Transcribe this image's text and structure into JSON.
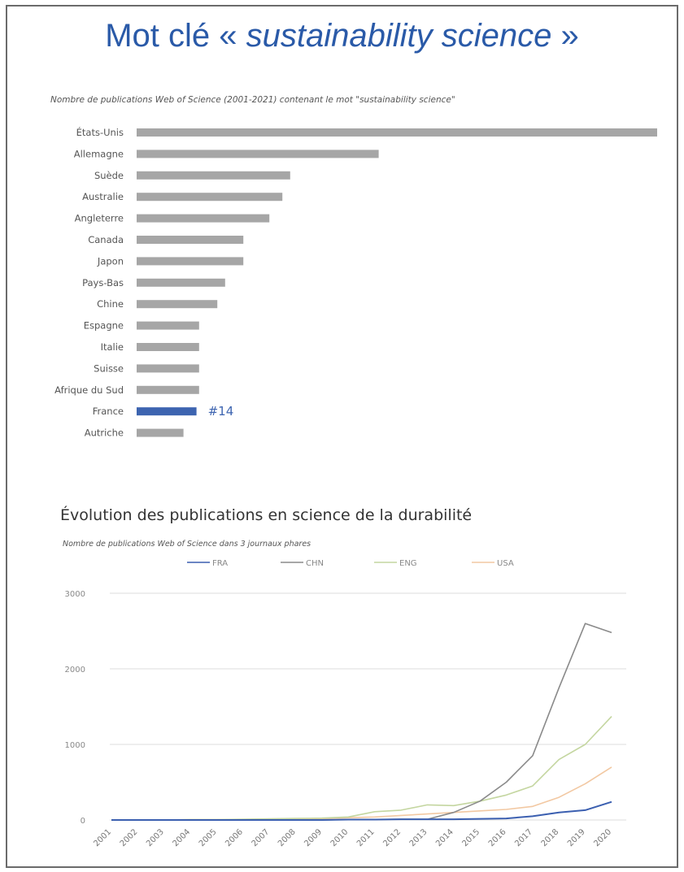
{
  "slide": {
    "title_prefix": "Mot clé « ",
    "title_italic": "sustainability science",
    "title_suffix": " »"
  },
  "chart_data": [
    {
      "type": "bar",
      "orientation": "horizontal",
      "title": "Nombre de publications Web of Science (2001-2021) contenant le mot \"sustainability science\"",
      "categories": [
        "États-Unis",
        "Allemagne",
        "Suède",
        "Australie",
        "Angleterre",
        "Canada",
        "Japon",
        "Pays-Bas",
        "Chine",
        "Espagne",
        "Italie",
        "Suisse",
        "Afrique du Sud",
        "France",
        "Autriche"
      ],
      "values": [
        100,
        46.5,
        29.5,
        28,
        25.5,
        20.5,
        20.5,
        17,
        15.5,
        12,
        12,
        12,
        12,
        11.5,
        9
      ],
      "colors": {
        "default": "#a6a6a6",
        "highlight": "#3d64b0"
      },
      "highlight_category": "France",
      "annotation": "#14",
      "grid": false
    },
    {
      "type": "line",
      "title": "Évolution des publications en science de la durabilité",
      "subtitle": "Nombre de publications Web of Science dans 3 journaux phares",
      "x": [
        "2001",
        "2002",
        "2003",
        "2004",
        "2005",
        "2006",
        "2007",
        "2008",
        "2009",
        "2010",
        "2011",
        "2012",
        "2013",
        "2014",
        "2015",
        "2016",
        "2017",
        "2018",
        "2019",
        "2020"
      ],
      "series": [
        {
          "name": "FRA",
          "color": "#3b5fb0",
          "values": [
            0,
            0,
            0,
            0,
            0,
            0,
            0,
            0,
            0,
            5,
            5,
            10,
            10,
            10,
            15,
            20,
            50,
            100,
            130,
            240
          ]
        },
        {
          "name": "CHN",
          "color": "#8a8a8a",
          "values": [
            0,
            0,
            0,
            0,
            0,
            0,
            0,
            0,
            0,
            5,
            5,
            10,
            10,
            100,
            250,
            500,
            850,
            1750,
            2600,
            2480
          ]
        },
        {
          "name": "ENG",
          "color": "#c4d6a0",
          "values": [
            0,
            0,
            0,
            5,
            5,
            10,
            15,
            20,
            25,
            40,
            110,
            130,
            200,
            190,
            250,
            330,
            450,
            800,
            1000,
            1370
          ]
        },
        {
          "name": "USA",
          "color": "#f2c8a2",
          "values": [
            0,
            0,
            0,
            5,
            5,
            5,
            10,
            15,
            15,
            30,
            40,
            60,
            80,
            100,
            120,
            140,
            180,
            300,
            480,
            700
          ]
        }
      ],
      "y_ticks": [
        "0",
        "1000",
        "2000",
        "3000"
      ],
      "ylim": [
        0,
        3000
      ],
      "legend_position": "top",
      "grid": true
    }
  ]
}
